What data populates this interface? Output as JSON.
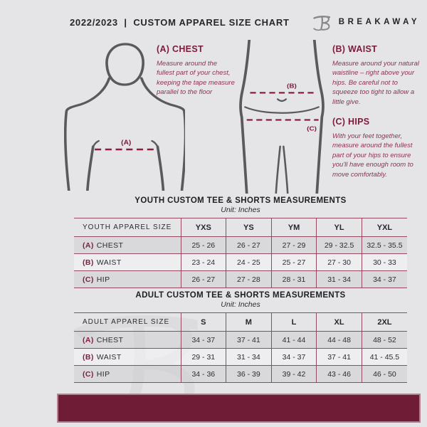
{
  "page": {
    "background": "#e5e5e7"
  },
  "colors": {
    "accent_maroon": "#7a1c3a",
    "instruction_text": "#8d3252",
    "dashed_line": "#8c1e3e",
    "figure_outline": "#595a5e",
    "table_border": "#93495e",
    "footer_bar": "#6f1d37",
    "watermark": "#d6d6d9",
    "logo_gray": "#85878b",
    "text_dark": "#26272b"
  },
  "header": {
    "title": "2022/2023  |  CUSTOM APPAREL SIZE CHART",
    "brand": "BREAKAWAY",
    "logo_icon": "breakaway-b-logo"
  },
  "instructions": {
    "chest": {
      "heading": "(A) CHEST",
      "body": "Measure around the fullest part of your chest, keeping the tape measure parallel to the floor"
    },
    "waist": {
      "heading": "(B) WAIST",
      "body": "Measure around your natural waistline – right above your hips. Be careful not to squeeze too tight to allow a little give."
    },
    "hips": {
      "heading": "(C) HIPS",
      "body": "With your feet together, measure around the fullest part of your hips to ensure you'll have enough room to move comfortably."
    }
  },
  "diagram": {
    "chest_label": "(A)",
    "waist_label": "(B)",
    "hips_label": "(C)"
  },
  "tables": [
    {
      "title": "YOUTH CUSTOM TEE & SHORTS MEASUREMENTS",
      "unit": "Unit: Inches",
      "size_header": "YOUTH APPAREL SIZE",
      "sizes": [
        "YXS",
        "YS",
        "YM",
        "YL",
        "YXL"
      ],
      "rows": [
        {
          "prefix": "(A)",
          "label": "CHEST",
          "values": [
            "25 - 26",
            "26 - 27",
            "27 - 29",
            "29 - 32.5",
            "32.5 - 35.5"
          ]
        },
        {
          "prefix": "(B)",
          "label": "WAIST",
          "values": [
            "23 - 24",
            "24 - 25",
            "25 - 27",
            "27 - 30",
            "30 - 33"
          ]
        },
        {
          "prefix": "(C)",
          "label": "HIP",
          "values": [
            "26 - 27",
            "27 - 28",
            "28 - 31",
            "31 - 34",
            "34 - 37"
          ]
        }
      ]
    },
    {
      "title": "ADULT CUSTOM TEE & SHORTS MEASUREMENTS",
      "unit": "Unit: Inches",
      "size_header": "ADULT APPAREL SIZE",
      "sizes": [
        "S",
        "M",
        "L",
        "XL",
        "2XL"
      ],
      "rows": [
        {
          "prefix": "(A)",
          "label": "CHEST",
          "values": [
            "34 - 37",
            "37 - 41",
            "41 - 44",
            "44 - 48",
            "48 - 52"
          ]
        },
        {
          "prefix": "(B)",
          "label": "WAIST",
          "values": [
            "29 - 31",
            "31 - 34",
            "34 - 37",
            "37 - 41",
            "41 - 45.5"
          ]
        },
        {
          "prefix": "(C)",
          "label": "HIP",
          "values": [
            "34 - 36",
            "36 - 39",
            "39 - 42",
            "43 - 46",
            "46 - 50"
          ]
        }
      ]
    }
  ]
}
